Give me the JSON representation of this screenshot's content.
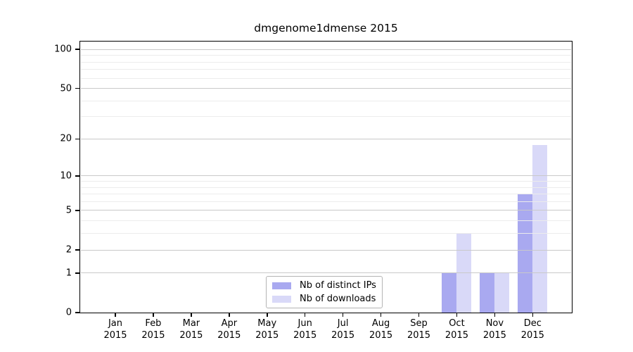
{
  "figure": {
    "title": "dmgenome1dmense 2015"
  },
  "chart_data": {
    "type": "bar",
    "title": "dmgenome1dmense 2015",
    "categories": [
      "Jan",
      "Feb",
      "Mar",
      "Apr",
      "May",
      "Jun",
      "Jul",
      "Aug",
      "Sep",
      "Oct",
      "Nov",
      "Dec"
    ],
    "category_year": "2015",
    "series": [
      {
        "name": "Nb of distinct IPs",
        "color": "#a9a9f0",
        "values": [
          0,
          0,
          0,
          0,
          0,
          0,
          0,
          0,
          0,
          1,
          1,
          7
        ]
      },
      {
        "name": "Nb of downloads",
        "color": "#d9d9f8",
        "values": [
          0,
          0,
          0,
          0,
          0,
          0,
          0,
          0,
          0,
          3,
          1,
          18
        ]
      }
    ],
    "xlabel": "",
    "ylabel": "",
    "y_axis": {
      "scale": "log1p",
      "major_ticks": [
        0,
        1,
        2,
        5,
        10,
        20,
        50,
        100
      ],
      "minor_gridlines": [
        3,
        4,
        6,
        7,
        8,
        9,
        30,
        40,
        60,
        70,
        80,
        90
      ],
      "max": 115
    },
    "grid": "horizontal-only",
    "legend_position": "bottom-center-inside",
    "colors": {
      "major_grid": "#c9c9c9",
      "minor_grid": "#ececec",
      "axis": "#000000",
      "legend_border": "#b4b4b4",
      "background": "#ffffff"
    }
  }
}
